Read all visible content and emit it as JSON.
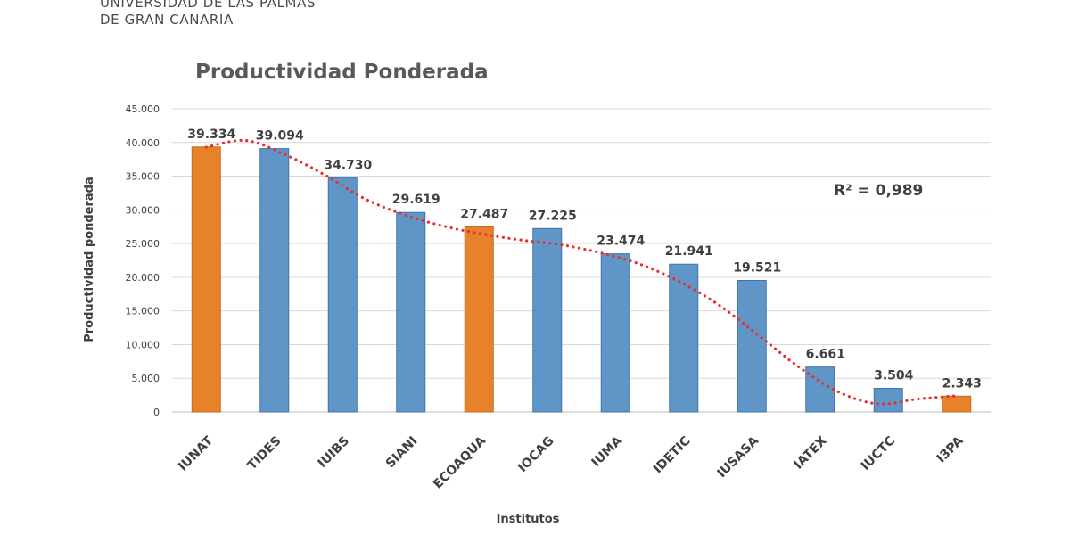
{
  "header": {
    "line1": "UNIVERSIDAD DE LAS PALMAS",
    "line2": "DE GRAN CANARIA"
  },
  "chart_data": {
    "type": "bar",
    "title": "Productividad Ponderada",
    "xlabel": "Institutos",
    "ylabel": "Productividad ponderada",
    "categories": [
      "IUNAT",
      "TIDES",
      "IUIBS",
      "SIANI",
      "ECOAQUA",
      "IOCAG",
      "IUMA",
      "IDETIC",
      "IUSASA",
      "IATEX",
      "IUCTC",
      "I3PA"
    ],
    "values": [
      39334,
      39094,
      34730,
      29619,
      27487,
      27225,
      23474,
      21941,
      19521,
      6661,
      3504,
      2343
    ],
    "value_labels": [
      "39.334",
      "39.094",
      "34.730",
      "29.619",
      "27.487",
      "27.225",
      "23.474",
      "21.941",
      "19.521",
      "6.661",
      "3.504",
      "2.343"
    ],
    "bar_colors": [
      "#E8822A",
      "#6096C7",
      "#6096C7",
      "#6096C7",
      "#E8822A",
      "#6096C7",
      "#6096C7",
      "#6096C7",
      "#6096C7",
      "#6096C7",
      "#6096C7",
      "#E8822A"
    ],
    "ylim": [
      0,
      45000
    ],
    "yticks": [
      0,
      5000,
      10000,
      15000,
      20000,
      25000,
      30000,
      35000,
      40000,
      45000
    ],
    "ytick_labels": [
      "0",
      "5.000",
      "10.000",
      "15.000",
      "20.000",
      "25.000",
      "30.000",
      "35.000",
      "40.000",
      "45.000"
    ],
    "grid": true,
    "trendline": {
      "style": "dotted",
      "color": "#E53030",
      "values": [
        39300,
        40300,
        38200,
        35200,
        31700,
        29300,
        27600,
        26400,
        25500,
        24800,
        23600,
        21900,
        19300,
        15800,
        11300,
        6700,
        3000,
        1200,
        1900,
        2400
      ]
    },
    "annotation": "R² = 0,989"
  }
}
